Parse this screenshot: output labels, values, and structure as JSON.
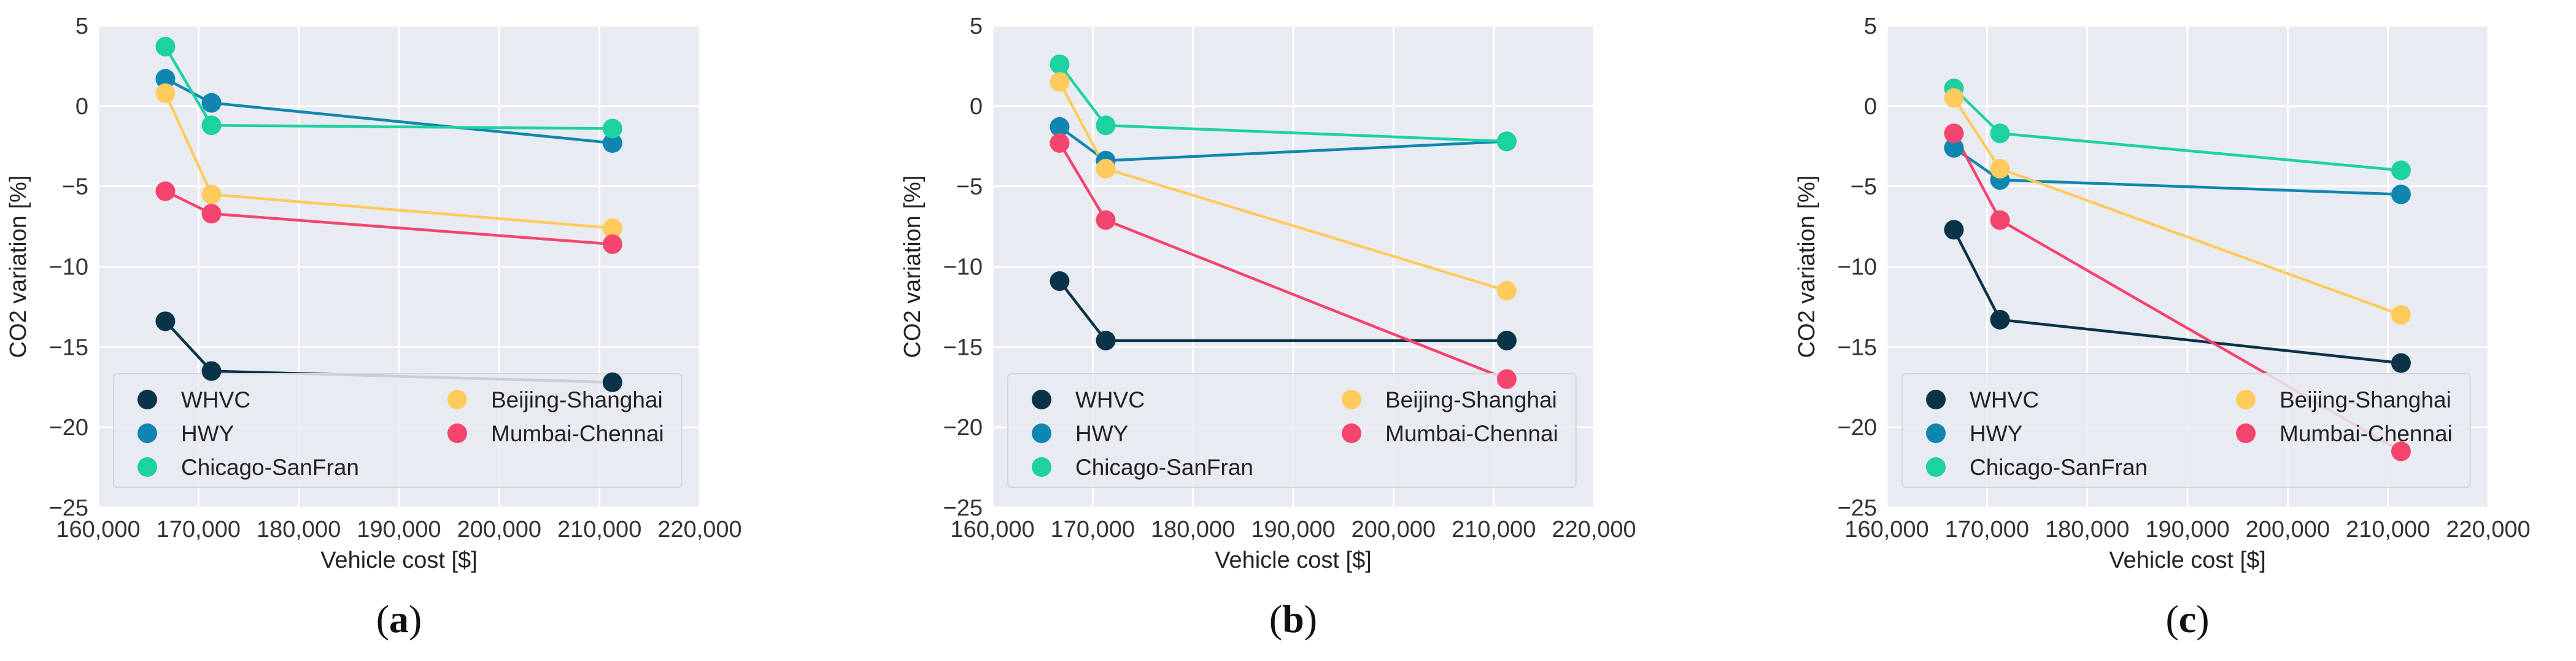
{
  "colors": {
    "WHVC": "#0b3347",
    "HWY": "#0f86b0",
    "Chicago-SanFran": "#1ed1a0",
    "Beijing-Shanghai": "#ffcb5c",
    "Mumbai-Chennai": "#f5456f",
    "plot_bg": "#e9ebf2",
    "grid": "#ffffff"
  },
  "chart_data": [
    {
      "type": "line",
      "panel_label": "a",
      "panel_label_text": "(a)",
      "xlabel": "Vehicle cost [$]",
      "ylabel": "CO2 variation [%]",
      "xlim": [
        160000,
        220000
      ],
      "ylim": [
        -25,
        5
      ],
      "x_ticks": [
        160000,
        170000,
        180000,
        190000,
        200000,
        210000,
        220000
      ],
      "x_tick_labels": [
        "160,000",
        "170,000",
        "180,000",
        "190,000",
        "200,000",
        "210,000",
        "220,000"
      ],
      "y_ticks": [
        5,
        0,
        -5,
        -10,
        -15,
        -20,
        -25
      ],
      "y_tick_labels": [
        "5",
        "0",
        "−5",
        "−10",
        "−15",
        "−20",
        "−25"
      ],
      "grid": true,
      "legend_position": "lower-left",
      "series": [
        {
          "name": "WHVC",
          "x": [
            166700,
            171300,
            211300
          ],
          "y": [
            -13.4,
            -16.5,
            -17.2
          ]
        },
        {
          "name": "HWY",
          "x": [
            166700,
            171300,
            211300
          ],
          "y": [
            1.7,
            0.2,
            -2.3
          ]
        },
        {
          "name": "Chicago-SanFran",
          "x": [
            166700,
            171300,
            211300
          ],
          "y": [
            3.7,
            -1.2,
            -1.4
          ]
        },
        {
          "name": "Beijing-Shanghai",
          "x": [
            166700,
            171300,
            211300
          ],
          "y": [
            0.8,
            -5.5,
            -7.6
          ]
        },
        {
          "name": "Mumbai-Chennai",
          "x": [
            166700,
            171300,
            211300
          ],
          "y": [
            -5.3,
            -6.7,
            -8.6
          ]
        }
      ]
    },
    {
      "type": "line",
      "panel_label": "b",
      "panel_label_text": "(b)",
      "xlabel": "Vehicle cost [$]",
      "ylabel": "CO2 variation [%]",
      "xlim": [
        160000,
        220000
      ],
      "ylim": [
        -25,
        5
      ],
      "x_ticks": [
        160000,
        170000,
        180000,
        190000,
        200000,
        210000,
        220000
      ],
      "x_tick_labels": [
        "160,000",
        "170,000",
        "180,000",
        "190,000",
        "200,000",
        "210,000",
        "220,000"
      ],
      "y_ticks": [
        5,
        0,
        -5,
        -10,
        -15,
        -20,
        -25
      ],
      "y_tick_labels": [
        "5",
        "0",
        "−5",
        "−10",
        "−15",
        "−20",
        "−25"
      ],
      "grid": true,
      "legend_position": "lower-left",
      "series": [
        {
          "name": "WHVC",
          "x": [
            166700,
            171300,
            211300
          ],
          "y": [
            -10.9,
            -14.6,
            -14.6
          ]
        },
        {
          "name": "HWY",
          "x": [
            166700,
            171300,
            211300
          ],
          "y": [
            -1.3,
            -3.4,
            -2.2
          ]
        },
        {
          "name": "Chicago-SanFran",
          "x": [
            166700,
            171300,
            211300
          ],
          "y": [
            2.6,
            -1.2,
            -2.2
          ]
        },
        {
          "name": "Beijing-Shanghai",
          "x": [
            166700,
            171300,
            211300
          ],
          "y": [
            1.5,
            -3.9,
            -11.5
          ]
        },
        {
          "name": "Mumbai-Chennai",
          "x": [
            166700,
            171300,
            211300
          ],
          "y": [
            -2.3,
            -7.1,
            -17.0
          ]
        }
      ]
    },
    {
      "type": "line",
      "panel_label": "c",
      "panel_label_text": "(c)",
      "xlabel": "Vehicle cost [$]",
      "ylabel": "CO2 variation [%]",
      "xlim": [
        160000,
        220000
      ],
      "ylim": [
        -25,
        5
      ],
      "x_ticks": [
        160000,
        170000,
        180000,
        190000,
        200000,
        210000,
        220000
      ],
      "x_tick_labels": [
        "160,000",
        "170,000",
        "180,000",
        "190,000",
        "200,000",
        "210,000",
        "220,000"
      ],
      "y_ticks": [
        5,
        0,
        -5,
        -10,
        -15,
        -20,
        -25
      ],
      "y_tick_labels": [
        "5",
        "0",
        "−5",
        "−10",
        "−15",
        "−20",
        "−25"
      ],
      "grid": true,
      "legend_position": "lower-left",
      "series": [
        {
          "name": "WHVC",
          "x": [
            166700,
            171300,
            211300
          ],
          "y": [
            -7.7,
            -13.3,
            -16.0
          ]
        },
        {
          "name": "HWY",
          "x": [
            166700,
            171300,
            211300
          ],
          "y": [
            -2.6,
            -4.6,
            -5.5
          ]
        },
        {
          "name": "Chicago-SanFran",
          "x": [
            166700,
            171300,
            211300
          ],
          "y": [
            1.1,
            -1.7,
            -4.0
          ]
        },
        {
          "name": "Beijing-Shanghai",
          "x": [
            166700,
            171300,
            211300
          ],
          "y": [
            0.5,
            -3.9,
            -13.0
          ]
        },
        {
          "name": "Mumbai-Chennai",
          "x": [
            166700,
            171300,
            211300
          ],
          "y": [
            -1.7,
            -7.1,
            -21.5
          ]
        }
      ]
    }
  ]
}
